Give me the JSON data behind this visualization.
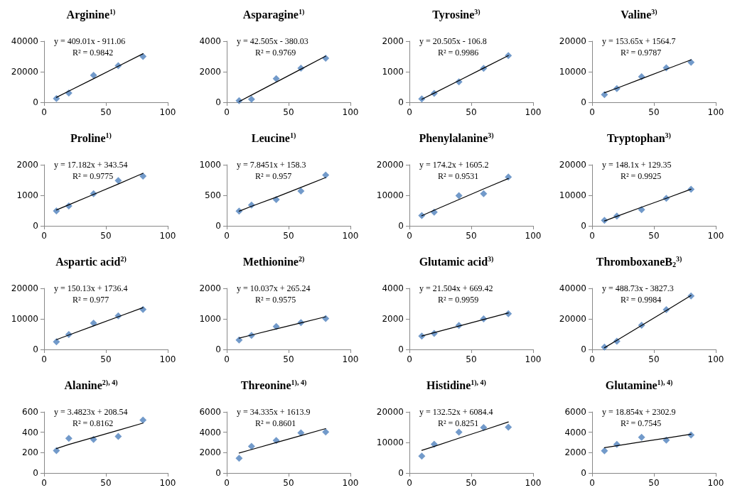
{
  "chart_data": [
    {
      "type": "scatter",
      "title": "Arginine$^{1)}$",
      "x": [
        10,
        20,
        40,
        60,
        80
      ],
      "xlim": [
        0,
        100
      ],
      "xticks": [
        0,
        50,
        100
      ],
      "ylim": [
        0,
        40000
      ],
      "yticks": [
        0,
        20000,
        40000
      ],
      "annotations": [
        "y = 409.01x - 911.06",
        "R² = 0.9842"
      ],
      "series": [
        {
          "color": "#4f81bd",
          "marker": "diamond",
          "values": [
            2500,
            6000,
            17700,
            24000,
            30000
          ]
        },
        {
          "type": "line",
          "color": "#000000",
          "marker": "none",
          "values": [
            3200,
            7300,
            15400,
            23600,
            31800
          ]
        }
      ]
    },
    {
      "type": "scatter",
      "title": "Asparagine$^{1)}$",
      "x": [
        10,
        20,
        40,
        60,
        80
      ],
      "xlim": [
        0,
        100
      ],
      "xticks": [
        0,
        50,
        100
      ],
      "ylim": [
        0,
        4000
      ],
      "yticks": [
        0,
        2000,
        4000
      ],
      "annotations": [
        "y = 42.505x - 380.03",
        "R² = 0.9769"
      ],
      "series": [
        {
          "color": "#4f81bd",
          "marker": "diamond",
          "values": [
            100,
            200,
            1550,
            2230,
            2880
          ]
        },
        {
          "type": "line",
          "color": "#000000",
          "marker": "none",
          "values": [
            50,
            470,
            1320,
            2170,
            3020
          ]
        }
      ]
    },
    {
      "type": "scatter",
      "title": "Tyrosine$^{3)}$",
      "x": [
        10,
        20,
        40,
        60,
        80
      ],
      "xlim": [
        0,
        100
      ],
      "xticks": [
        0,
        50,
        100
      ],
      "ylim": [
        0,
        2000
      ],
      "yticks": [
        0,
        1000,
        2000
      ],
      "annotations": [
        "y = 20.505x - 106.8",
        "R² = 0.9986"
      ],
      "series": [
        {
          "color": "#4f81bd",
          "marker": "diamond",
          "values": [
            110,
            290,
            670,
            1110,
            1530
          ]
        },
        {
          "type": "line",
          "color": "#000000",
          "marker": "none",
          "values": [
            100,
            300,
            710,
            1120,
            1530
          ]
        }
      ]
    },
    {
      "type": "scatter",
      "title": "Valine$^{3)}$",
      "x": [
        10,
        20,
        40,
        60,
        80
      ],
      "xlim": [
        0,
        100
      ],
      "xticks": [
        0,
        50,
        100
      ],
      "ylim": [
        0,
        20000
      ],
      "yticks": [
        0,
        10000,
        20000
      ],
      "annotations": [
        "y = 153.65x + 1564.7",
        "R² = 0.9787"
      ],
      "series": [
        {
          "color": "#4f81bd",
          "marker": "diamond",
          "values": [
            2500,
            4500,
            8400,
            11300,
            13100
          ]
        },
        {
          "type": "line",
          "color": "#000000",
          "marker": "none",
          "values": [
            3100,
            4600,
            7700,
            10800,
            13900
          ]
        }
      ]
    },
    {
      "type": "scatter",
      "title": "Proline$^{1)}$",
      "x": [
        10,
        20,
        40,
        60,
        80
      ],
      "xlim": [
        0,
        100
      ],
      "xticks": [
        0,
        50,
        100
      ],
      "ylim": [
        0,
        2000
      ],
      "yticks": [
        0,
        1000,
        2000
      ],
      "annotations": [
        "y = 17.182x + 343.54",
        "R² = 0.9775"
      ],
      "series": [
        {
          "color": "#4f81bd",
          "marker": "diamond",
          "values": [
            490,
            650,
            1050,
            1480,
            1630
          ]
        },
        {
          "type": "line",
          "color": "#000000",
          "marker": "none",
          "values": [
            520,
            690,
            1030,
            1370,
            1720
          ]
        }
      ]
    },
    {
      "type": "scatter",
      "title": "Leucine$^{1)}$",
      "x": [
        10,
        20,
        40,
        60,
        80
      ],
      "xlim": [
        0,
        100
      ],
      "xticks": [
        0,
        50,
        100
      ],
      "ylim": [
        0,
        1000
      ],
      "yticks": [
        0,
        500,
        1000
      ],
      "annotations": [
        "y = 7.8451x + 158.3",
        "R² = 0.957"
      ],
      "series": [
        {
          "color": "#4f81bd",
          "marker": "diamond",
          "values": [
            240,
            340,
            430,
            570,
            830
          ]
        },
        {
          "type": "line",
          "color": "#000000",
          "marker": "none",
          "values": [
            240,
            320,
            470,
            630,
            790
          ]
        }
      ]
    },
    {
      "type": "scatter",
      "title": "Phenylalanine$^{3)}$",
      "x": [
        10,
        20,
        40,
        60,
        80
      ],
      "xlim": [
        0,
        100
      ],
      "xticks": [
        0,
        50,
        100
      ],
      "ylim": [
        0,
        20000
      ],
      "yticks": [
        0,
        10000,
        20000
      ],
      "annotations": [
        "y = 174.2x + 1605.2",
        "R² = 0.9531"
      ],
      "series": [
        {
          "color": "#4f81bd",
          "marker": "diamond",
          "values": [
            3400,
            4500,
            9900,
            10500,
            16000
          ]
        },
        {
          "type": "line",
          "color": "#000000",
          "marker": "none",
          "values": [
            3300,
            5100,
            8600,
            12100,
            15500
          ]
        }
      ]
    },
    {
      "type": "scatter",
      "title": "Tryptophan$^{3)}$",
      "x": [
        10,
        20,
        40,
        60,
        80
      ],
      "xlim": [
        0,
        100
      ],
      "xticks": [
        0,
        50,
        100
      ],
      "ylim": [
        0,
        20000
      ],
      "yticks": [
        0,
        10000,
        20000
      ],
      "annotations": [
        "y = 148.1x + 129.35",
        "R² = 0.9925"
      ],
      "series": [
        {
          "color": "#4f81bd",
          "marker": "diamond",
          "values": [
            1800,
            3200,
            5300,
            9000,
            12000
          ]
        },
        {
          "type": "line",
          "color": "#000000",
          "marker": "none",
          "values": [
            1600,
            3100,
            6100,
            9000,
            12000
          ]
        }
      ]
    },
    {
      "type": "scatter",
      "title": "Aspartic acid$^{2)}$",
      "x": [
        10,
        20,
        40,
        60,
        80
      ],
      "xlim": [
        0,
        100
      ],
      "xticks": [
        0,
        50,
        100
      ],
      "ylim": [
        0,
        20000
      ],
      "yticks": [
        0,
        10000,
        20000
      ],
      "annotations": [
        "y = 150.13x + 1736.4",
        "R² = 0.977"
      ],
      "series": [
        {
          "color": "#4f81bd",
          "marker": "diamond",
          "values": [
            2500,
            4900,
            8600,
            11000,
            13100
          ]
        },
        {
          "type": "line",
          "color": "#000000",
          "marker": "none",
          "values": [
            3200,
            4700,
            7700,
            10700,
            13700
          ]
        }
      ]
    },
    {
      "type": "scatter",
      "title": "Methionine$^{2)}$",
      "x": [
        10,
        20,
        40,
        60,
        80
      ],
      "xlim": [
        0,
        100
      ],
      "xticks": [
        0,
        50,
        100
      ],
      "ylim": [
        0,
        2000
      ],
      "yticks": [
        0,
        1000,
        2000
      ],
      "annotations": [
        "y = 10.037x + 265.24",
        "R² = 0.9575"
      ],
      "series": [
        {
          "color": "#4f81bd",
          "marker": "diamond",
          "values": [
            310,
            460,
            750,
            880,
            1010
          ]
        },
        {
          "type": "line",
          "color": "#000000",
          "marker": "none",
          "values": [
            370,
            470,
            670,
            870,
            1070
          ]
        }
      ]
    },
    {
      "type": "scatter",
      "title": "Glutamic acid$^{3)}$",
      "x": [
        10,
        20,
        40,
        60,
        80
      ],
      "xlim": [
        0,
        100
      ],
      "xticks": [
        0,
        50,
        100
      ],
      "ylim": [
        0,
        4000
      ],
      "yticks": [
        0,
        2000,
        4000
      ],
      "annotations": [
        "y = 21.504x + 669.42",
        "R² = 0.9959"
      ],
      "series": [
        {
          "color": "#4f81bd",
          "marker": "diamond",
          "values": [
            870,
            1050,
            1570,
            2000,
            2340
          ]
        },
        {
          "type": "line",
          "color": "#000000",
          "marker": "none",
          "values": [
            880,
            1100,
            1530,
            1960,
            2390
          ]
        }
      ]
    },
    {
      "type": "scatter",
      "title": "ThromboxaneB$_{2}$$^{3)}$",
      "x": [
        10,
        20,
        40,
        60,
        80
      ],
      "xlim": [
        0,
        100
      ],
      "xticks": [
        0,
        50,
        100
      ],
      "ylim": [
        0,
        40000
      ],
      "yticks": [
        0,
        20000,
        40000
      ],
      "annotations": [
        "y = 488.73x - 3827.3",
        "R² = 0.9984"
      ],
      "series": [
        {
          "color": "#4f81bd",
          "marker": "diamond",
          "values": [
            1500,
            5300,
            15800,
            26000,
            35000
          ]
        },
        {
          "type": "line",
          "color": "#000000",
          "marker": "none",
          "values": [
            1100,
            5900,
            15700,
            25500,
            35300
          ]
        }
      ]
    },
    {
      "type": "scatter",
      "title": "Alanine$^{2), 4)}$",
      "x": [
        10,
        20,
        40,
        60,
        80
      ],
      "xlim": [
        0,
        100
      ],
      "xticks": [
        0,
        50,
        100
      ],
      "ylim": [
        0,
        600
      ],
      "yticks": [
        0,
        200,
        400,
        600
      ],
      "annotations": [
        "y = 3.4823x + 208.54",
        "R² = 0.8162"
      ],
      "series": [
        {
          "color": "#4f81bd",
          "marker": "diamond",
          "values": [
            220,
            340,
            330,
            360,
            520
          ]
        },
        {
          "type": "line",
          "color": "#000000",
          "marker": "none",
          "values": [
            240,
            280,
            350,
            420,
            490
          ]
        }
      ]
    },
    {
      "type": "scatter",
      "title": "Threonine$^{1), 4)}$",
      "x": [
        10,
        20,
        40,
        60,
        80
      ],
      "xlim": [
        0,
        100
      ],
      "xticks": [
        0,
        50,
        100
      ],
      "ylim": [
        0,
        6000
      ],
      "yticks": [
        0,
        2000,
        4000,
        6000
      ],
      "annotations": [
        "y = 34.335x + 1613.9",
        "R² = 0.8601"
      ],
      "series": [
        {
          "color": "#4f81bd",
          "marker": "diamond",
          "values": [
            1450,
            2620,
            3200,
            3950,
            4030
          ]
        },
        {
          "type": "line",
          "color": "#000000",
          "marker": "none",
          "values": [
            1960,
            2300,
            2990,
            3670,
            4360
          ]
        }
      ]
    },
    {
      "type": "scatter",
      "title": "Histidine$^{1), 4)}$",
      "x": [
        10,
        20,
        40,
        60,
        80
      ],
      "xlim": [
        0,
        100
      ],
      "xticks": [
        0,
        50,
        100
      ],
      "ylim": [
        0,
        20000
      ],
      "yticks": [
        0,
        10000,
        20000
      ],
      "annotations": [
        "y = 132.52x + 6084.4",
        "R² = 0.8251"
      ],
      "series": [
        {
          "color": "#4f81bd",
          "marker": "diamond",
          "values": [
            5500,
            9400,
            13400,
            14900,
            15000
          ]
        },
        {
          "type": "line",
          "color": "#000000",
          "marker": "none",
          "values": [
            7400,
            8700,
            11400,
            14000,
            16700
          ]
        }
      ]
    },
    {
      "type": "scatter",
      "title": "Glutamine$^{1), 4)}$",
      "x": [
        10,
        20,
        40,
        60,
        80
      ],
      "xlim": [
        0,
        100
      ],
      "xticks": [
        0,
        50,
        100
      ],
      "ylim": [
        0,
        6000
      ],
      "yticks": [
        0,
        2000,
        4000,
        6000
      ],
      "annotations": [
        "y = 18.854x + 2302.9",
        "R² = 0.7545"
      ],
      "series": [
        {
          "color": "#4f81bd",
          "marker": "diamond",
          "values": [
            2180,
            2800,
            3500,
            3230,
            3730
          ]
        },
        {
          "type": "line",
          "color": "#000000",
          "marker": "none",
          "values": [
            2490,
            2680,
            3060,
            3430,
            3810
          ]
        }
      ]
    }
  ]
}
